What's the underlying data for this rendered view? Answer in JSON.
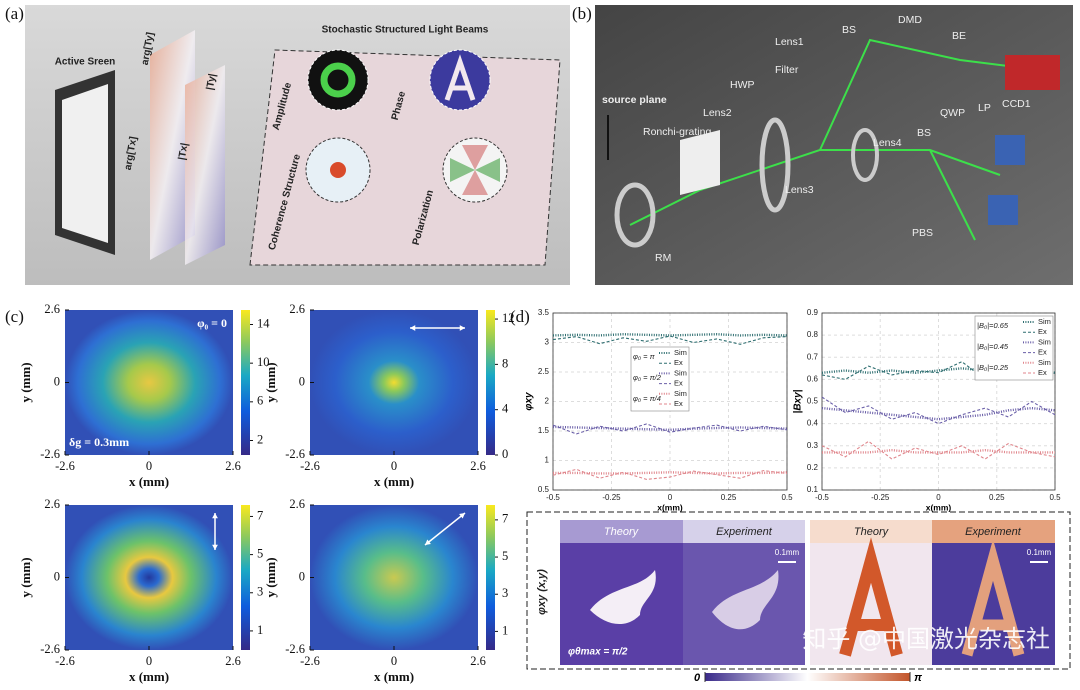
{
  "figure": {
    "panel_a": {
      "label": "(a)",
      "title": "Stochastic Structured Light Beams",
      "screen": "Active Sreen",
      "sheets": [
        "arg[Ty]",
        "|Ty|",
        "arg[Tx]",
        "|Tx|"
      ],
      "tiles": [
        "Amplitude",
        "Phase",
        "Coherence Structure",
        "Polarization"
      ]
    },
    "panel_b": {
      "label": "(b)",
      "source": "source plane",
      "components": [
        "DMD",
        "BS",
        "Lens1",
        "BE",
        "Filter",
        "HWP",
        "Lens2",
        "Ronchi-grating",
        "Lens4",
        "BS",
        "QWP",
        "LP",
        "CCD1",
        "Lens3",
        "PBS",
        "RM"
      ]
    },
    "panel_c": {
      "label": "(c)",
      "xlabel": "x (mm)",
      "ylabel": "y (mm)",
      "xlim": [
        -2.6,
        2.6
      ],
      "xticks": [
        -2.6,
        0,
        2.6
      ],
      "ylim": [
        -2.6,
        2.6
      ],
      "yticks": [
        -2.6,
        0,
        2.6
      ],
      "plots": [
        {
          "clim": [
            0.5,
            15.5
          ],
          "cticks": [
            2,
            6,
            10,
            14
          ],
          "annotations": [
            "φ₀ = 0",
            "δg = 0.3mm"
          ]
        },
        {
          "clim": [
            0,
            12.8
          ],
          "cticks": [
            0,
            4,
            8,
            12
          ]
        },
        {
          "clim": [
            0,
            7.6
          ],
          "cticks": [
            1,
            3,
            5,
            7
          ]
        },
        {
          "clim": [
            0,
            7.8
          ],
          "cticks": [
            1,
            3,
            5,
            7
          ]
        }
      ]
    },
    "panel_d": {
      "label": "(d)",
      "maps": {
        "headers": [
          "Theory",
          "Experiment",
          "Theory",
          "Experiment"
        ],
        "scale_bar": "0.1mm",
        "phase_max": "φθmax = π/2",
        "ylabel": "φxy (x,y)",
        "clim": [
          0,
          3.1416
        ],
        "cticks": [
          0,
          {
            "value": 3.1416,
            "label": "π"
          }
        ]
      },
      "watermark": "知乎 @中国激光杂志社"
    }
  },
  "chart_data": [
    {
      "type": "line",
      "xlabel": "x(mm)",
      "ylabel": "φxy",
      "grid": true,
      "xlim": [
        -0.5,
        0.5
      ],
      "xticks": [
        -0.5,
        -0.25,
        0,
        0.25,
        0.5
      ],
      "ylim": [
        0.5,
        3.5
      ],
      "yticks": [
        0.5,
        1,
        1.5,
        2,
        2.5,
        3,
        3.5
      ],
      "x": [
        -0.5,
        -0.4,
        -0.3,
        -0.2,
        -0.1,
        0,
        0.1,
        0.2,
        0.3,
        0.4,
        0.5
      ],
      "legend_groups": [
        "φ₀ = π",
        "φ₀ = π/2",
        "φ₀ = π/4"
      ],
      "series": [
        {
          "name": "Sim",
          "color": "#2e6e70",
          "values": [
            3.12,
            3.13,
            3.12,
            3.14,
            3.13,
            3.12,
            3.13,
            3.14,
            3.12,
            3.13,
            3.12
          ]
        },
        {
          "name": "Ex",
          "color": "#2e6e70",
          "values": [
            3.05,
            3.1,
            2.98,
            3.08,
            3.02,
            3.11,
            3.0,
            3.06,
            2.97,
            3.08,
            3.1
          ]
        },
        {
          "name": "Sim",
          "color": "#6a5fa8",
          "values": [
            1.57,
            1.56,
            1.55,
            1.54,
            1.53,
            1.52,
            1.54,
            1.55,
            1.56,
            1.55,
            1.54
          ]
        },
        {
          "name": "Ex",
          "color": "#6a5fa8",
          "values": [
            1.6,
            1.45,
            1.58,
            1.5,
            1.62,
            1.48,
            1.55,
            1.6,
            1.5,
            1.58,
            1.52
          ]
        },
        {
          "name": "Sim",
          "color": "#e0868c",
          "values": [
            0.79,
            0.79,
            0.78,
            0.78,
            0.79,
            0.8,
            0.79,
            0.78,
            0.79,
            0.79,
            0.8
          ]
        },
        {
          "name": "Ex",
          "color": "#e0868c",
          "values": [
            0.75,
            0.85,
            0.7,
            0.8,
            0.68,
            0.72,
            0.82,
            0.76,
            0.7,
            0.83,
            0.78
          ]
        }
      ]
    },
    {
      "type": "line",
      "xlabel": "x(mm)",
      "ylabel": "|Bxy|",
      "grid": true,
      "xlim": [
        -0.5,
        0.5
      ],
      "xticks": [
        -0.5,
        -0.25,
        0,
        0.25,
        0.5
      ],
      "ylim": [
        0.1,
        0.9
      ],
      "yticks": [
        0.1,
        0.2,
        0.3,
        0.4,
        0.5,
        0.6,
        0.7,
        0.8,
        0.9
      ],
      "x": [
        -0.5,
        -0.4,
        -0.3,
        -0.2,
        -0.1,
        0,
        0.1,
        0.2,
        0.3,
        0.4,
        0.5
      ],
      "legend_groups": [
        "|B₀|=0.65",
        "|B₀|=0.45",
        "|B₀|=0.25"
      ],
      "series": [
        {
          "name": "Sim",
          "color": "#2e6e70",
          "values": [
            0.63,
            0.64,
            0.63,
            0.64,
            0.63,
            0.64,
            0.65,
            0.64,
            0.63,
            0.64,
            0.63
          ]
        },
        {
          "name": "Ex",
          "color": "#2e6e70",
          "values": [
            0.62,
            0.6,
            0.66,
            0.62,
            0.64,
            0.63,
            0.68,
            0.6,
            0.66,
            0.61,
            0.65
          ]
        },
        {
          "name": "Sim",
          "color": "#6a5fa8",
          "values": [
            0.47,
            0.46,
            0.45,
            0.44,
            0.43,
            0.42,
            0.43,
            0.44,
            0.46,
            0.47,
            0.46
          ]
        },
        {
          "name": "Ex",
          "color": "#6a5fa8",
          "values": [
            0.52,
            0.45,
            0.48,
            0.42,
            0.45,
            0.4,
            0.44,
            0.47,
            0.43,
            0.5,
            0.44
          ]
        },
        {
          "name": "Sim",
          "color": "#e0868c",
          "values": [
            0.27,
            0.27,
            0.27,
            0.28,
            0.27,
            0.27,
            0.27,
            0.28,
            0.27,
            0.27,
            0.27
          ]
        },
        {
          "name": "Ex",
          "color": "#e0868c",
          "values": [
            0.3,
            0.25,
            0.32,
            0.24,
            0.29,
            0.26,
            0.3,
            0.24,
            0.31,
            0.27,
            0.25
          ]
        }
      ]
    }
  ]
}
